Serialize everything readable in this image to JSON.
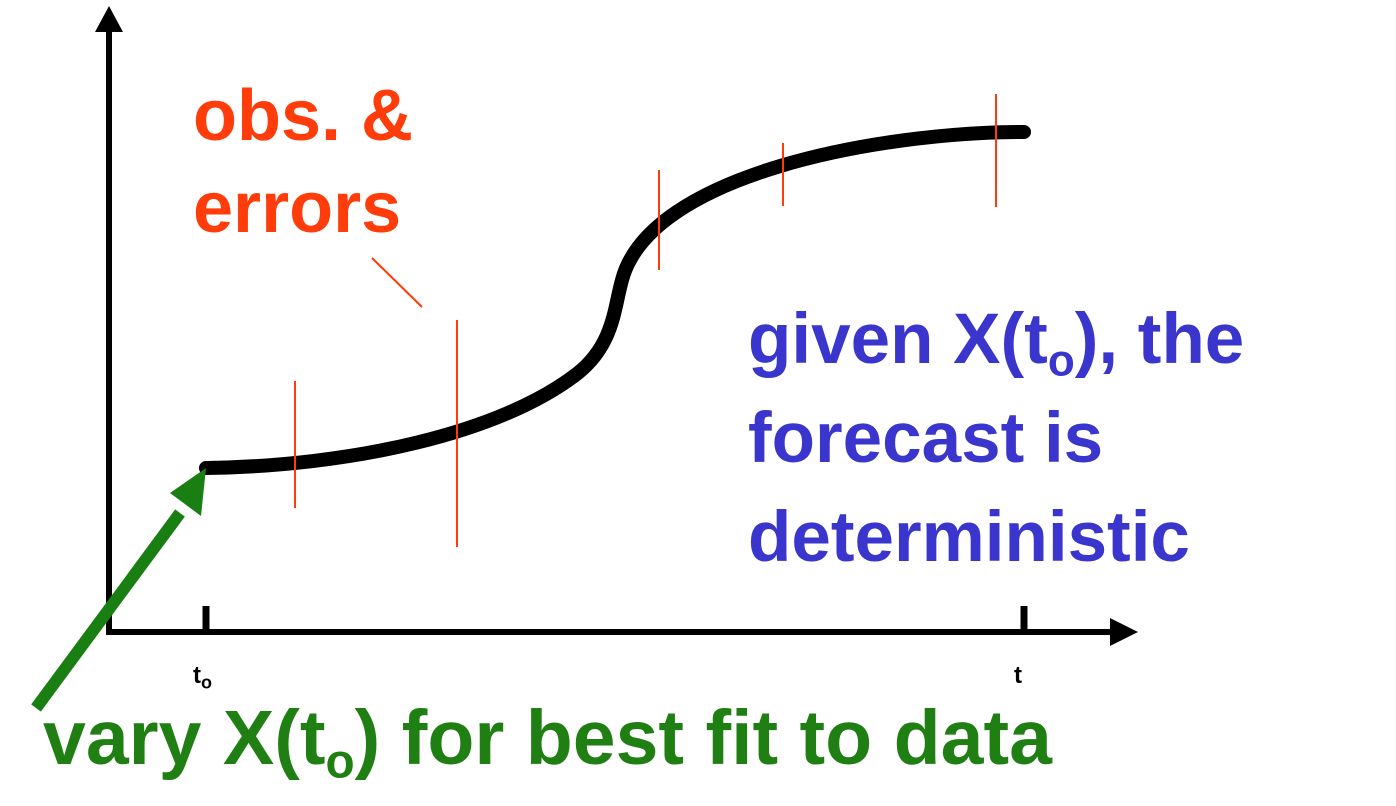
{
  "labels": {
    "observations": {
      "line1": "obs. &",
      "line2": "errors"
    },
    "forecast": {
      "line1_pre": "given X(t",
      "line1_sub": "o",
      "line1_post": "), the",
      "line2": "forecast is",
      "line3": "deterministic"
    },
    "vary": {
      "pre": "vary X(t",
      "sub": "o",
      "post": ") for best fit to data"
    }
  },
  "axis_ticks": {
    "start": {
      "base": "t",
      "sub": "o"
    },
    "end": "t"
  },
  "colors": {
    "observations": "#ff3c0a",
    "forecast_text": "#3a35cc",
    "vary_text": "#1f7f12",
    "curve": "#000000",
    "error_bars": "#ff3c0a",
    "axes": "#000000",
    "arrow": "#1a7f12"
  }
}
